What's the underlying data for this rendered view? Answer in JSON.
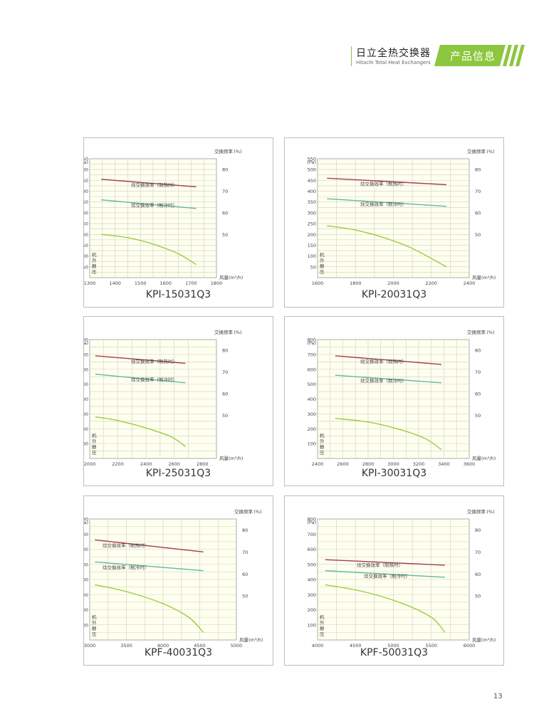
{
  "header": {
    "brand_title": "日立全热交换器",
    "brand_subtitle": "Hitachi Total Heat Exchangers",
    "section_label": "产品信息"
  },
  "colors": {
    "accent_green": "#8dc63f",
    "pressure_curve": "#9ccc3c",
    "heating_curve": "#a23a54",
    "cooling_curve": "#5fb8a2",
    "plot_bg": "#fffff0"
  },
  "page_number": "13",
  "chart_data": [
    {
      "type": "line",
      "model": "KPI-15031Q3",
      "xlabel": "风量(m³/h)",
      "ylabel_left": "机外静压",
      "unit_left": "(Pa)",
      "ylabel_right": "交换频率",
      "unit_right": "(%)",
      "xlim": [
        1300,
        1800
      ],
      "x_ticks": [
        1300,
        1400,
        1500,
        1600,
        1700,
        1800
      ],
      "ylim": [
        0,
        550
      ],
      "y_ticks": [
        50,
        100,
        150,
        200,
        250,
        300,
        350,
        400,
        450,
        500,
        550
      ],
      "y2lim": [
        30,
        85
      ],
      "y2_ticks": [
        50,
        60,
        70,
        80
      ],
      "series": [
        {
          "key": "pressure",
          "axis": "left",
          "x": [
            1345,
            1450,
            1550,
            1650,
            1720
          ],
          "values": [
            200,
            185,
            155,
            110,
            60
          ]
        },
        {
          "key": "heating",
          "name": "焓交换效率（制热时）",
          "axis": "right",
          "x": [
            1345,
            1720
          ],
          "values": [
            75.5,
            72
          ]
        },
        {
          "key": "cooling",
          "name": "焓交换效率（制冷时）",
          "axis": "right",
          "x": [
            1345,
            1720
          ],
          "values": [
            66,
            62
          ]
        }
      ]
    },
    {
      "type": "line",
      "model": "KPI-20031Q3",
      "xlabel": "风量(m³/h)",
      "ylabel_left": "机外静压",
      "unit_left": "(Pa)",
      "ylabel_right": "交换频率",
      "unit_right": "(%)",
      "xlim": [
        1600,
        2400
      ],
      "x_ticks": [
        1600,
        1800,
        2000,
        2200,
        2400
      ],
      "ylim": [
        0,
        550
      ],
      "y_ticks": [
        50,
        100,
        150,
        200,
        250,
        300,
        350,
        400,
        450,
        500,
        550
      ],
      "y2lim": [
        30,
        85
      ],
      "y2_ticks": [
        50,
        60,
        70,
        80
      ],
      "series": [
        {
          "key": "pressure",
          "axis": "left",
          "x": [
            1650,
            1800,
            1950,
            2100,
            2280
          ],
          "values": [
            240,
            220,
            185,
            135,
            50
          ]
        },
        {
          "key": "heating",
          "name": "焓交换效率（制热时）",
          "axis": "right",
          "x": [
            1650,
            2280
          ],
          "values": [
            76,
            73
          ]
        },
        {
          "key": "cooling",
          "name": "焓交换效率（制冷时）",
          "axis": "right",
          "x": [
            1650,
            2280
          ],
          "values": [
            66.5,
            63
          ]
        }
      ]
    },
    {
      "type": "line",
      "model": "KPI-25031Q3",
      "xlabel": "风量(m³/h)",
      "ylabel_left": "机外静压",
      "unit_left": "(Pa)",
      "ylabel_right": "交换频率",
      "unit_right": "(%)",
      "xlim": [
        2000,
        2900
      ],
      "x_ticks": [
        2000,
        2200,
        2400,
        2600,
        2800
      ],
      "ylim": [
        0,
        800
      ],
      "y_ticks": [
        100,
        200,
        300,
        400,
        500,
        600,
        700,
        800
      ],
      "y2lim": [
        30,
        85
      ],
      "y2_ticks": [
        50,
        60,
        70,
        80
      ],
      "series": [
        {
          "key": "pressure",
          "axis": "left",
          "x": [
            2040,
            2200,
            2400,
            2580,
            2680
          ],
          "values": [
            280,
            255,
            205,
            145,
            80
          ]
        },
        {
          "key": "heating",
          "name": "焓交换效率（制热时）",
          "axis": "right",
          "x": [
            2040,
            2680
          ],
          "values": [
            77.5,
            74
          ]
        },
        {
          "key": "cooling",
          "name": "焓交换效率（制冷时）",
          "axis": "right",
          "x": [
            2040,
            2680
          ],
          "values": [
            69,
            65
          ]
        }
      ]
    },
    {
      "type": "line",
      "model": "KPI-30031Q3",
      "xlabel": "风量(m³/h)",
      "ylabel_left": "机外静压",
      "unit_left": "(Pa)",
      "ylabel_right": "交换频率",
      "unit_right": "(%)",
      "xlim": [
        2400,
        3600
      ],
      "x_ticks": [
        2400,
        2600,
        2800,
        3000,
        3200,
        3400,
        3600
      ],
      "ylim": [
        0,
        800
      ],
      "y_ticks": [
        100,
        200,
        300,
        400,
        500,
        600,
        700,
        800
      ],
      "y2lim": [
        30,
        85
      ],
      "y2_ticks": [
        50,
        60,
        70,
        80
      ],
      "series": [
        {
          "key": "pressure",
          "axis": "left",
          "x": [
            2540,
            2800,
            3050,
            3250,
            3380
          ],
          "values": [
            270,
            245,
            195,
            135,
            60
          ]
        },
        {
          "key": "heating",
          "name": "焓交换效率（制热时）",
          "axis": "right",
          "x": [
            2540,
            3380
          ],
          "values": [
            77.5,
            73.5
          ]
        },
        {
          "key": "cooling",
          "name": "焓交换效率（制冷时）",
          "axis": "right",
          "x": [
            2540,
            3380
          ],
          "values": [
            68.5,
            65
          ]
        }
      ]
    },
    {
      "type": "line",
      "model": "KPF-40031Q3",
      "xlabel": "风量(m³/h)",
      "ylabel_left": "机外静压",
      "unit_left": "(Pa)",
      "ylabel_right": "交换频率",
      "unit_right": "(%)",
      "xlim": [
        3000,
        5000
      ],
      "x_ticks": [
        3000,
        3500,
        4000,
        4500,
        5000
      ],
      "ylim": [
        0,
        800
      ],
      "y_ticks": [
        100,
        200,
        300,
        400,
        500,
        600,
        700,
        800
      ],
      "y2lim": [
        30,
        85
      ],
      "y2_ticks": [
        50,
        60,
        70,
        80
      ],
      "series": [
        {
          "key": "pressure",
          "axis": "left",
          "x": [
            3070,
            3500,
            4000,
            4350,
            4550
          ],
          "values": [
            365,
            320,
            240,
            150,
            50
          ]
        },
        {
          "key": "heating",
          "name": "焓交换效率（制热时）",
          "axis": "right",
          "x": [
            3070,
            4550
          ],
          "values": [
            75.5,
            70
          ]
        },
        {
          "key": "cooling",
          "name": "焓交换效率（制冷时）",
          "axis": "right",
          "x": [
            3070,
            4550
          ],
          "values": [
            65.5,
            61.5
          ]
        }
      ]
    },
    {
      "type": "line",
      "model": "KPF-50031Q3",
      "xlabel": "风量(m³/h)",
      "ylabel_left": "机外静压",
      "unit_left": "(Pa)",
      "ylabel_right": "交换频率",
      "unit_right": "(%)",
      "xlim": [
        4000,
        6000
      ],
      "x_ticks": [
        4000,
        4500,
        5000,
        5500,
        6000
      ],
      "ylim": [
        0,
        800
      ],
      "y_ticks": [
        100,
        200,
        300,
        400,
        500,
        600,
        700,
        800
      ],
      "y2lim": [
        30,
        85
      ],
      "y2_ticks": [
        50,
        60,
        70,
        80
      ],
      "series": [
        {
          "key": "pressure",
          "axis": "left",
          "x": [
            4100,
            4600,
            5100,
            5500,
            5680
          ],
          "values": [
            365,
            320,
            245,
            150,
            50
          ]
        },
        {
          "key": "heating",
          "name": "焓交换效率（制热时）",
          "axis": "right",
          "x": [
            4100,
            5680
          ],
          "values": [
            66.5,
            64
          ]
        },
        {
          "key": "cooling",
          "name": "焓交换效率（制冷时）",
          "axis": "right",
          "x": [
            4100,
            5680
          ],
          "values": [
            61.5,
            58.5
          ]
        }
      ]
    }
  ]
}
